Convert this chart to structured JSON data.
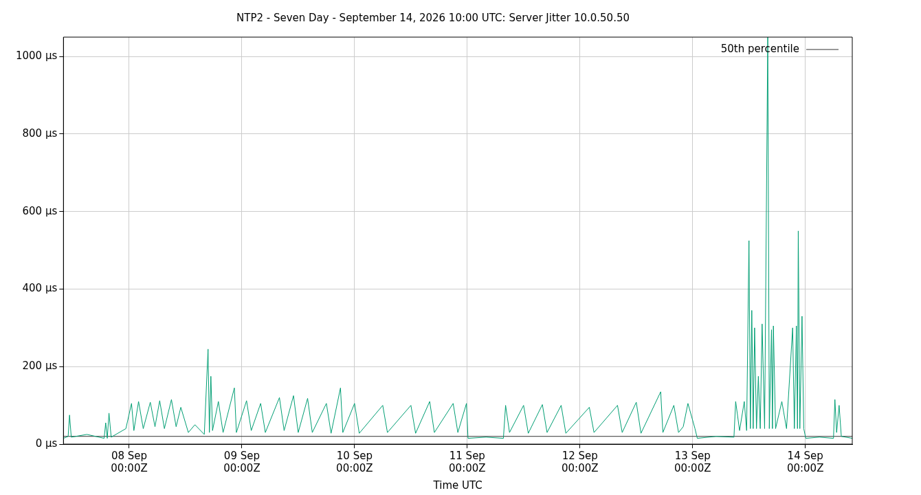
{
  "chart_data": {
    "type": "line",
    "title": "NTP2 - Seven Day - September 14, 2026 10:00 UTC: Server Jitter 10.0.50.50",
    "xlabel": "Time UTC",
    "xlim": [
      "2026-09-07T10:00",
      "2026-09-14T10:00"
    ],
    "xticks": [
      {
        "value": "2026-09-08T00:00",
        "label": "08 Sep\n00:00Z"
      },
      {
        "value": "2026-09-09T00:00",
        "label": "09 Sep\n00:00Z"
      },
      {
        "value": "2026-09-10T00:00",
        "label": "10 Sep\n00:00Z"
      },
      {
        "value": "2026-09-11T00:00",
        "label": "11 Sep\n00:00Z"
      },
      {
        "value": "2026-09-12T00:00",
        "label": "12 Sep\n00:00Z"
      },
      {
        "value": "2026-09-13T00:00",
        "label": "13 Sep\n00:00Z"
      },
      {
        "value": "2026-09-14T00:00",
        "label": "14 Sep\n00:00Z"
      }
    ],
    "ylim": [
      0,
      1050
    ],
    "yticks": [
      {
        "value": 0,
        "label": "0 µs"
      },
      {
        "value": 200,
        "label": "200 µs"
      },
      {
        "value": 400,
        "label": "400 µs"
      },
      {
        "value": 600,
        "label": "600 µs"
      },
      {
        "value": 800,
        "label": "800 µs"
      },
      {
        "value": 1000,
        "label": "1000 µs"
      }
    ],
    "grid": true,
    "legend": "top right",
    "marker": "none",
    "line_style": "solid",
    "series": [
      {
        "color": "#009e73",
        "x": [
          "2026-09-07T10:00",
          "2026-09-07T11:00",
          "2026-09-07T11:18",
          "2026-09-07T11:40",
          "2026-09-07T15:00",
          "2026-09-07T18:40",
          "2026-09-07T19:00",
          "2026-09-07T19:20",
          "2026-09-07T19:42",
          "2026-09-07T20:10",
          "2026-09-07T23:18",
          "2026-09-08T00:30",
          "2026-09-08T01:00",
          "2026-09-08T02:00",
          "2026-09-08T03:00",
          "2026-09-08T04:30",
          "2026-09-08T05:30",
          "2026-09-08T06:30",
          "2026-09-08T07:30",
          "2026-09-08T09:00",
          "2026-09-08T10:00",
          "2026-09-08T11:00",
          "2026-09-08T12:36",
          "2026-09-08T14:00",
          "2026-09-08T16:00",
          "2026-09-08T16:48",
          "2026-09-08T17:05",
          "2026-09-08T17:24",
          "2026-09-08T17:45",
          "2026-09-08T19:00",
          "2026-09-08T20:00",
          "2026-09-08T22:24",
          "2026-09-08T22:50",
          "2026-09-09T01:00",
          "2026-09-09T02:00",
          "2026-09-09T04:00",
          "2026-09-09T05:00",
          "2026-09-09T08:00",
          "2026-09-09T09:00",
          "2026-09-09T11:00",
          "2026-09-09T12:00",
          "2026-09-09T14:00",
          "2026-09-09T15:00",
          "2026-09-09T18:00",
          "2026-09-09T19:00",
          "2026-09-09T21:00",
          "2026-09-09T21:30",
          "2026-09-10T00:00",
          "2026-09-10T01:00",
          "2026-09-10T06:00",
          "2026-09-10T07:00",
          "2026-09-10T12:00",
          "2026-09-10T13:00",
          "2026-09-10T16:00",
          "2026-09-10T17:00",
          "2026-09-10T21:00",
          "2026-09-10T22:00",
          "2026-09-10T23:50",
          "2026-09-11T00:10",
          "2026-09-11T04:00",
          "2026-09-11T07:42",
          "2026-09-11T08:10",
          "2026-09-11T09:00",
          "2026-09-11T12:00",
          "2026-09-11T13:00",
          "2026-09-11T16:00",
          "2026-09-11T17:00",
          "2026-09-11T20:00",
          "2026-09-11T21:00",
          "2026-09-12T02:00",
          "2026-09-12T03:00",
          "2026-09-12T08:00",
          "2026-09-12T09:00",
          "2026-09-12T12:00",
          "2026-09-12T13:00",
          "2026-09-12T17:12",
          "2026-09-12T17:40",
          "2026-09-12T20:00",
          "2026-09-12T21:00",
          "2026-09-12T22:00",
          "2026-09-12T23:00",
          "2026-09-13T00:30",
          "2026-09-13T01:00",
          "2026-09-13T05:00",
          "2026-09-13T08:48",
          "2026-09-13T09:10",
          "2026-09-13T10:00",
          "2026-09-13T11:00",
          "2026-09-13T11:30",
          "2026-09-13T12:00",
          "2026-09-13T12:18",
          "2026-09-13T12:36",
          "2026-09-13T12:54",
          "2026-09-13T13:12",
          "2026-09-13T13:36",
          "2026-09-13T14:00",
          "2026-09-13T14:24",
          "2026-09-13T14:48",
          "2026-09-13T15:20",
          "2026-09-13T16:00",
          "2026-09-13T16:20",
          "2026-09-13T16:48",
          "2026-09-13T17:00",
          "2026-09-13T17:12",
          "2026-09-13T17:40",
          "2026-09-13T19:00",
          "2026-09-13T20:00",
          "2026-09-13T21:18",
          "2026-09-13T21:40",
          "2026-09-13T22:06",
          "2026-09-13T22:20",
          "2026-09-13T22:30",
          "2026-09-13T22:50",
          "2026-09-13T23:18",
          "2026-09-13T23:40",
          "2026-09-14T00:06",
          "2026-09-14T03:00",
          "2026-09-14T06:00",
          "2026-09-14T06:18",
          "2026-09-14T06:40",
          "2026-09-14T07:12",
          "2026-09-14T07:40",
          "2026-09-14T10:00"
        ],
        "values": [
          15,
          20,
          75,
          18,
          25,
          15,
          55,
          15,
          80,
          18,
          40,
          105,
          35,
          110,
          40,
          108,
          45,
          112,
          40,
          115,
          45,
          95,
          30,
          50,
          25,
          245,
          30,
          175,
          35,
          110,
          30,
          145,
          30,
          112,
          35,
          105,
          30,
          120,
          35,
          125,
          30,
          118,
          30,
          105,
          28,
          145,
          30,
          105,
          28,
          100,
          30,
          100,
          28,
          110,
          30,
          105,
          30,
          105,
          15,
          18,
          15,
          100,
          30,
          100,
          28,
          102,
          30,
          100,
          28,
          95,
          30,
          100,
          30,
          108,
          28,
          135,
          30,
          100,
          30,
          45,
          105,
          40,
          15,
          20,
          18,
          110,
          35,
          110,
          35,
          525,
          40,
          345,
          40,
          300,
          40,
          175,
          40,
          310,
          40,
          1050,
          40,
          295,
          40,
          305,
          40,
          110,
          40,
          300,
          40,
          305,
          40,
          550,
          40,
          330,
          40,
          15,
          18,
          15,
          115,
          30,
          100,
          20,
          15
        ]
      },
      {
        "name": "50th percentile",
        "color": "#333333",
        "x": [
          "2026-09-07T10:00",
          "2026-09-14T10:00"
        ],
        "values": [
          20,
          20
        ]
      }
    ]
  }
}
